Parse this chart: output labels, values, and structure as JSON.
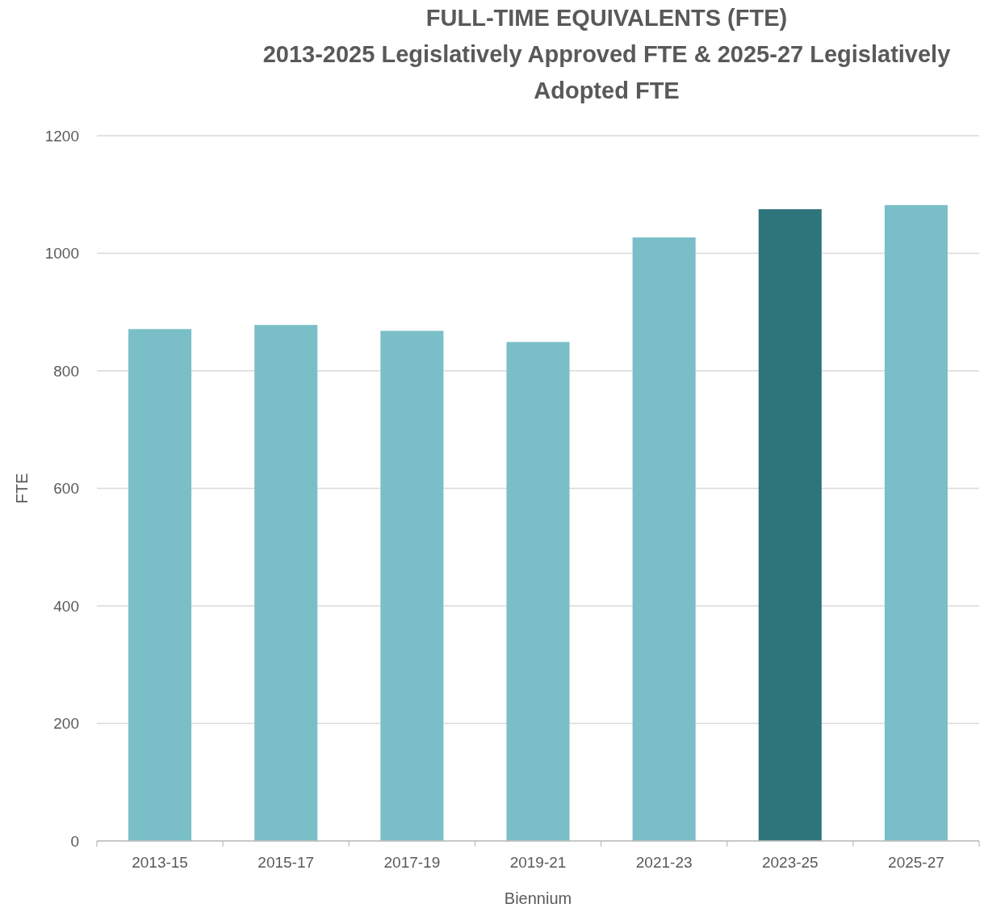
{
  "chart_data": {
    "type": "bar",
    "title": "FULL-TIME EQUIVALENTS (FTE)",
    "subtitle": "2013-2025 Legislatively Approved FTE & 2025-27 Legislatively Adopted FTE",
    "xlabel": "Biennium",
    "ylabel": "FTE",
    "categories": [
      "2013-15",
      "2015-17",
      "2017-19",
      "2019-21",
      "2021-23",
      "2023-25",
      "2025-27"
    ],
    "values": [
      871,
      878,
      868,
      849,
      1027,
      1075,
      1082
    ],
    "colors": [
      "#7abfc7",
      "#7abfc7",
      "#7abfc7",
      "#7abfc7",
      "#7abfc7",
      "#2e757b",
      "#7abfc7"
    ],
    "ylim": [
      0,
      1200
    ],
    "yticks": [
      0,
      200,
      400,
      600,
      800,
      1000,
      1200
    ],
    "grid": "y"
  }
}
